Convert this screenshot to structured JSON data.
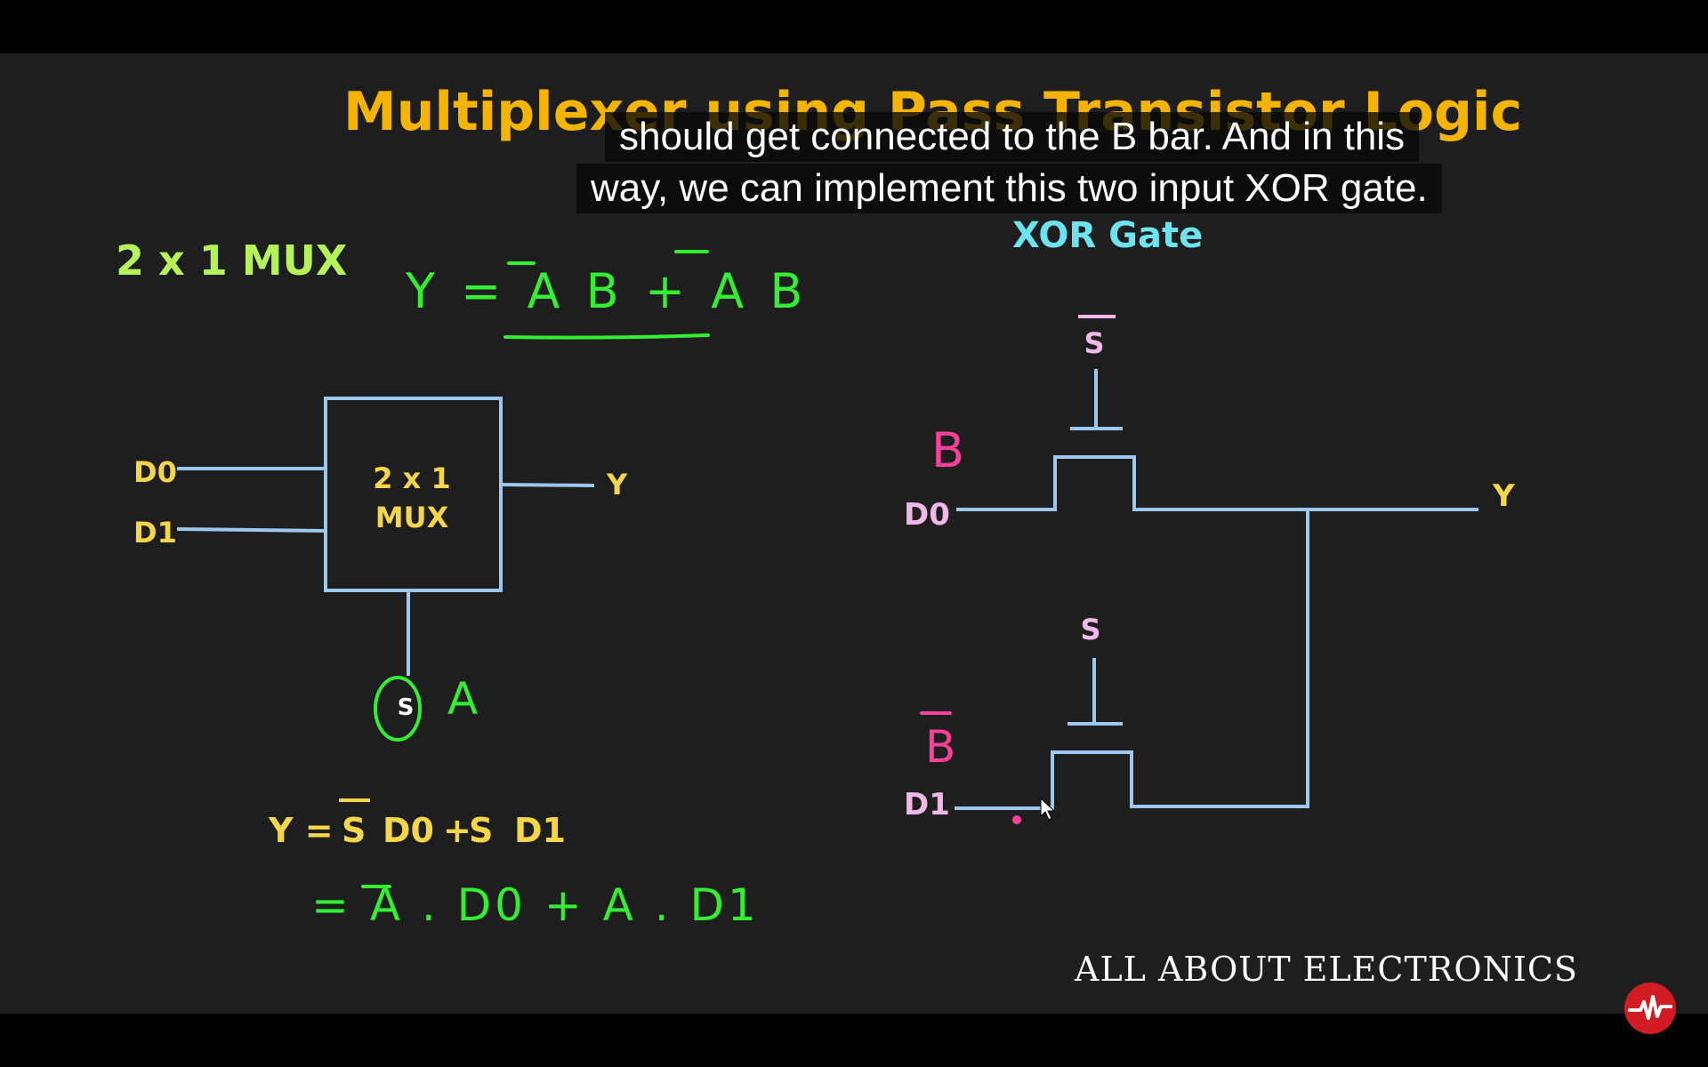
{
  "slide": {
    "title": "Multiplexer using Pass Transistor Logic",
    "mux_heading": "2 x 1 MUX",
    "xor_heading": "XOR Gate",
    "handwritten_equation": "Y = A B + A B",
    "mux_block": {
      "line1": "2 x 1",
      "line2": "MUX",
      "input_d0": "D0",
      "input_d1": "D1",
      "output": "Y",
      "select": "S",
      "select_note": "A"
    },
    "mux_equation": {
      "lhs": "Y =",
      "s_bar": "S",
      "d0": "D0",
      "plus": "+",
      "s": "S",
      "d1": "D1"
    },
    "handwritten_expansion": "= A . D0 + A . D1",
    "xor_circuit": {
      "top_gate_label": "S",
      "bottom_gate_label": "S",
      "input_top_note": "B",
      "input_top": "D0",
      "input_bottom_note": "B",
      "input_bottom": "D1",
      "output": "Y"
    },
    "watermark": "ALL ABOUT ELECTRONICS"
  },
  "captions": {
    "line1": "should get connected to the B bar. And in this",
    "line2": "way, we can implement this two input XOR gate."
  },
  "colors": {
    "title": "#f5b400",
    "mux_heading": "#b6f25a",
    "xor_heading": "#6ee3f0",
    "wire": "#9cc8f0",
    "yellow_text": "#f5d54a",
    "handwriting_green": "#33ee33",
    "handwriting_pink": "#ff3f9a",
    "gate_label": "#f2b8ea",
    "background": "#1e1e1e"
  }
}
